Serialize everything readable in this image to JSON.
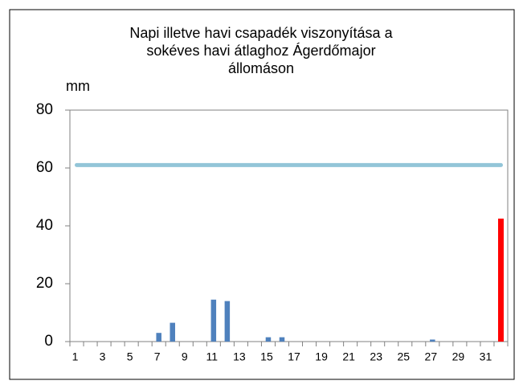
{
  "chart_data": {
    "type": "bar",
    "title": [
      "Napi illetve havi csapadék viszonyítása a",
      "sokéves havi átlaghoz Ágerdőmajor",
      "állomáson"
    ],
    "ylabel": "mm",
    "categories": [
      "1",
      null,
      "3",
      null,
      "5",
      null,
      "7",
      null,
      "9",
      null,
      "11",
      null,
      "13",
      null,
      "15",
      null,
      "17",
      null,
      "19",
      null,
      "21",
      null,
      "23",
      null,
      "25",
      null,
      "27",
      null,
      "29",
      null,
      "31",
      null
    ],
    "series": [
      {
        "type": "bar",
        "color": "#4f81bd",
        "values": [
          0,
          0,
          0,
          0,
          0,
          0,
          3,
          6.5,
          0,
          0,
          14.5,
          14,
          0,
          0,
          1.5,
          1.5,
          0,
          0,
          0,
          0,
          0,
          0,
          0,
          0,
          0,
          0,
          0.7,
          0,
          0,
          0,
          0,
          null
        ]
      },
      {
        "type": "bar",
        "color": "#ff0000",
        "values": [
          null,
          null,
          null,
          null,
          null,
          null,
          null,
          null,
          null,
          null,
          null,
          null,
          null,
          null,
          null,
          null,
          null,
          null,
          null,
          null,
          null,
          null,
          null,
          null,
          null,
          null,
          null,
          null,
          null,
          null,
          null,
          42.5
        ]
      },
      {
        "type": "line",
        "color": "#93c5d8",
        "values": [
          61,
          61,
          61,
          61,
          61,
          61,
          61,
          61,
          61,
          61,
          61,
          61,
          61,
          61,
          61,
          61,
          61,
          61,
          61,
          61,
          61,
          61,
          61,
          61,
          61,
          61,
          61,
          61,
          61,
          61,
          61,
          61
        ]
      }
    ],
    "ylim": [
      0,
      80
    ],
    "yticks": [
      0,
      20,
      40,
      60,
      80
    ]
  }
}
